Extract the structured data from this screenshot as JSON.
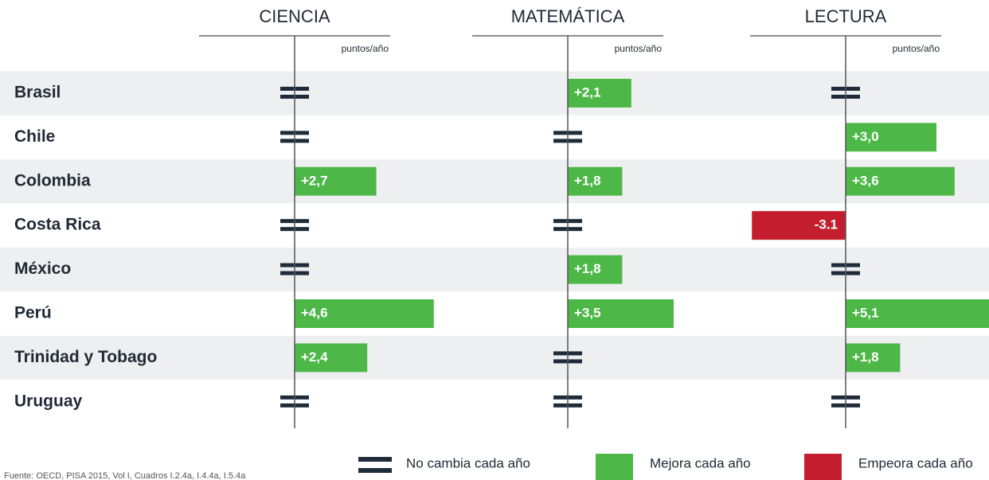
{
  "categories": [
    "Brasil",
    "Chile",
    "Colombia",
    "Costa Rica",
    "México",
    "Perú",
    "Trinidad y Tobago",
    "Uruguay"
  ],
  "chart_data": [
    {
      "type": "bar",
      "title": "CIENCIA",
      "axis_label": "puntos/año",
      "values": [
        null,
        null,
        2.7,
        null,
        null,
        4.6,
        2.4,
        null
      ],
      "value_labels": [
        null,
        null,
        "+2,7",
        null,
        null,
        "+4,6",
        "+2,4",
        null
      ]
    },
    {
      "type": "bar",
      "title": "MATEMÁTICA",
      "axis_label": "puntos/año",
      "values": [
        2.1,
        null,
        1.8,
        null,
        1.8,
        3.5,
        null,
        null
      ],
      "value_labels": [
        "+2,1",
        null,
        "+1,8",
        null,
        "+1,8",
        "+3,5",
        null,
        null
      ]
    },
    {
      "type": "bar",
      "title": "LECTURA",
      "axis_label": "puntos/año",
      "values": [
        null,
        3.0,
        3.6,
        -3.1,
        null,
        5.1,
        1.8,
        null
      ],
      "value_labels": [
        null,
        "+3,0",
        "+3,6",
        "-3.1",
        null,
        "+5,1",
        "+1,8",
        null
      ]
    }
  ],
  "legend": [
    {
      "label": "No cambia cada año",
      "color": "#1e2b3a"
    },
    {
      "label": "Mejora cada año",
      "color": "#4db848"
    },
    {
      "label": "Empeora cada año",
      "color": "#c41e2e"
    }
  ],
  "source": "Fuente: OECD, PISA 2015, Vol I, Cuadros I.2.4a, I.4.4a, I.5.4a"
}
